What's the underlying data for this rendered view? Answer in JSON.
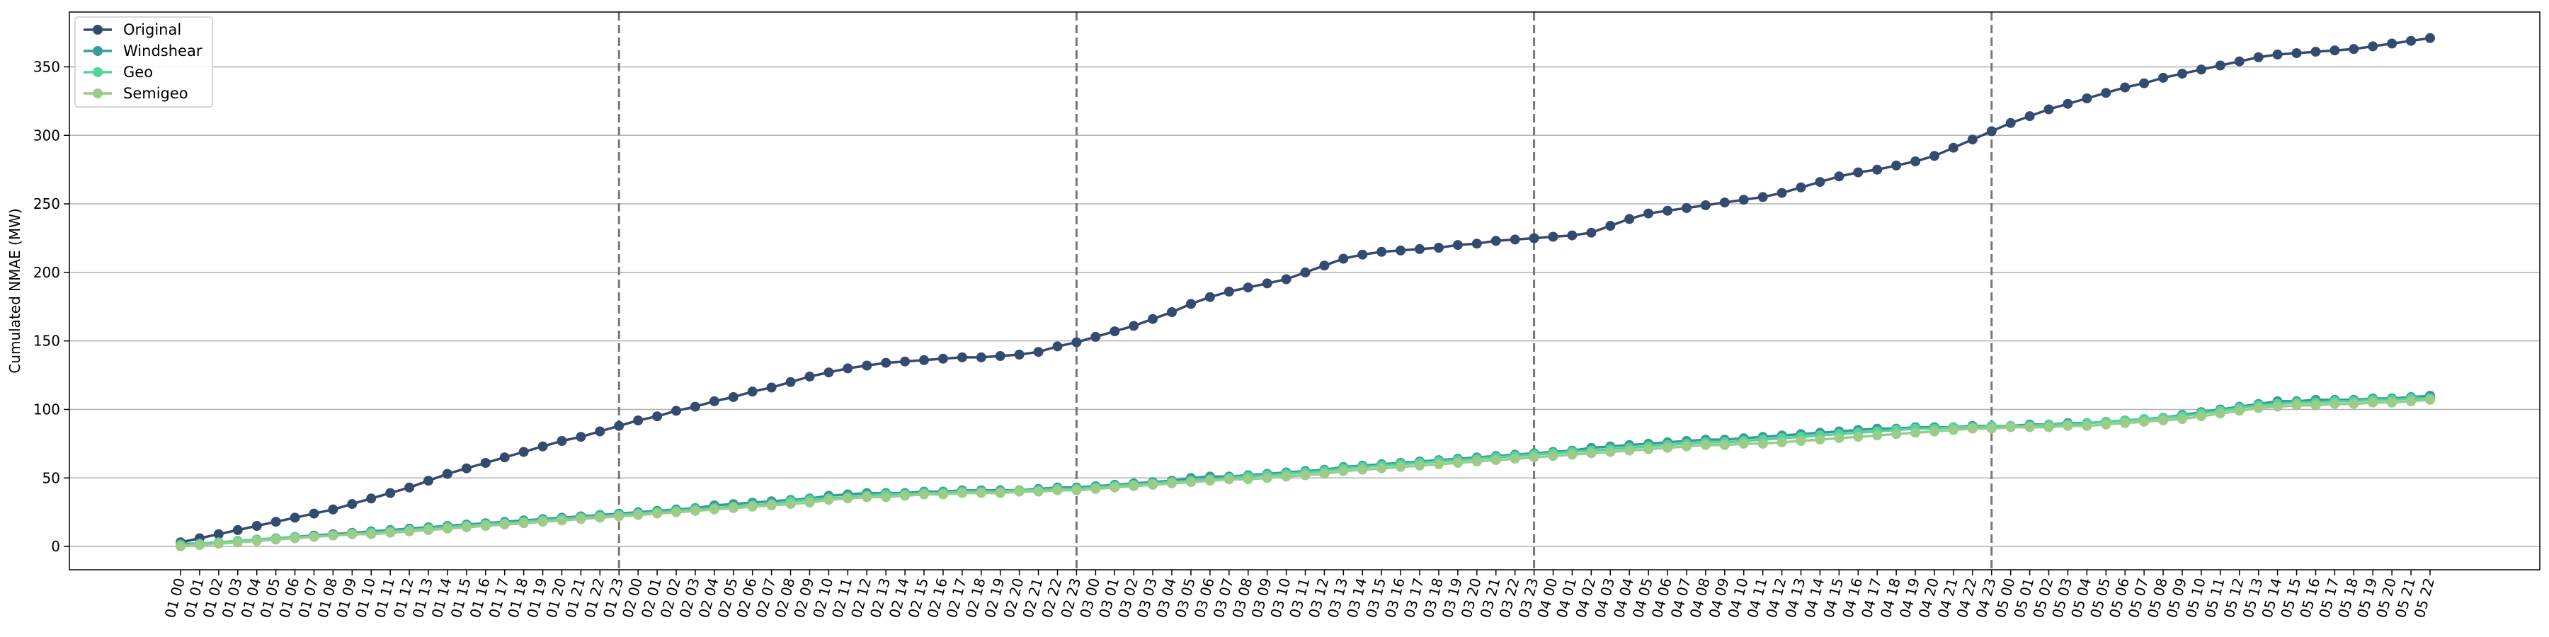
{
  "chart_data": {
    "type": "line",
    "title": "",
    "xlabel": "",
    "ylabel": "Cumulated NMAE (MW)",
    "ylim": [
      -17,
      390
    ],
    "yticks": [
      0,
      50,
      100,
      150,
      200,
      250,
      300,
      350
    ],
    "grid": "horizontal",
    "legend_position": "top-left",
    "day_separators_after": [
      "01 23",
      "02 23",
      "03 23",
      "04 23"
    ],
    "series": [
      {
        "name": "Original",
        "color": "#344a6e",
        "values": [
          3,
          6,
          9,
          12,
          15,
          18,
          21,
          24,
          27,
          31,
          35,
          39,
          43,
          48,
          53,
          57,
          61,
          65,
          69,
          73,
          77,
          80,
          84,
          88,
          92,
          95,
          99,
          102,
          106,
          109,
          113,
          116,
          120,
          124,
          127,
          130,
          132,
          134,
          135,
          136,
          137,
          138,
          138,
          139,
          140,
          142,
          146,
          149,
          153,
          157,
          161,
          166,
          171,
          177,
          182,
          186,
          189,
          192,
          195,
          200,
          205,
          210,
          213,
          215,
          216,
          217,
          218,
          220,
          221,
          223,
          224,
          225,
          226,
          227,
          229,
          234,
          239,
          243,
          245,
          247,
          249,
          251,
          253,
          255,
          258,
          262,
          266,
          270,
          273,
          275,
          278,
          281,
          285,
          291,
          297,
          303,
          309,
          314,
          319,
          323,
          327,
          331,
          335,
          338,
          342,
          345,
          348,
          351,
          354,
          357,
          359,
          360,
          361,
          362,
          363,
          365,
          367,
          369,
          371
        ]
      },
      {
        "name": "Windshear",
        "color": "#3a9a9a",
        "values": [
          2,
          2,
          3,
          4,
          5,
          6,
          7,
          8,
          9,
          10,
          11,
          12,
          13,
          14,
          15,
          16,
          17,
          18,
          19,
          20,
          21,
          22,
          23,
          24,
          25,
          26,
          27,
          28,
          30,
          31,
          32,
          33,
          34,
          35,
          37,
          38,
          39,
          39,
          39,
          40,
          40,
          41,
          41,
          41,
          41,
          42,
          43,
          43,
          44,
          45,
          46,
          47,
          48,
          50,
          51,
          51,
          52,
          53,
          54,
          55,
          56,
          58,
          59,
          60,
          61,
          62,
          63,
          64,
          65,
          66,
          67,
          68,
          69,
          70,
          72,
          73,
          74,
          75,
          76,
          77,
          78,
          78,
          79,
          80,
          81,
          82,
          83,
          84,
          85,
          86,
          86,
          87,
          87,
          87,
          88,
          88,
          88,
          89,
          89,
          90,
          90,
          91,
          92,
          93,
          94,
          96,
          98,
          100,
          102,
          104,
          106,
          106,
          107,
          107,
          107,
          108,
          108,
          109,
          110
        ]
      },
      {
        "name": "Geo",
        "color": "#52d49a",
        "values": [
          1,
          2,
          3,
          4,
          5,
          6,
          7,
          7,
          8,
          9,
          10,
          11,
          12,
          13,
          14,
          15,
          16,
          17,
          18,
          19,
          20,
          21,
          22,
          23,
          24,
          25,
          26,
          27,
          28,
          29,
          30,
          31,
          33,
          34,
          35,
          36,
          37,
          38,
          38,
          39,
          39,
          40,
          40,
          40,
          41,
          41,
          42,
          42,
          43,
          44,
          45,
          46,
          47,
          48,
          49,
          50,
          51,
          52,
          53,
          54,
          55,
          57,
          58,
          59,
          60,
          61,
          62,
          63,
          64,
          65,
          66,
          67,
          68,
          69,
          70,
          71,
          72,
          73,
          74,
          75,
          76,
          76,
          77,
          78,
          79,
          80,
          81,
          82,
          83,
          84,
          85,
          86,
          86,
          87,
          87,
          88,
          88,
          88,
          89,
          89,
          90,
          91,
          92,
          93,
          94,
          95,
          97,
          99,
          101,
          103,
          104,
          105,
          105,
          106,
          106,
          107,
          107,
          108,
          108
        ]
      },
      {
        "name": "Semigeo",
        "color": "#9ccc8a",
        "values": [
          0,
          1,
          2,
          3,
          4,
          5,
          6,
          7,
          8,
          9,
          9,
          10,
          11,
          12,
          13,
          14,
          15,
          16,
          17,
          18,
          19,
          20,
          21,
          22,
          23,
          24,
          25,
          26,
          27,
          28,
          29,
          30,
          31,
          32,
          34,
          35,
          36,
          36,
          37,
          38,
          38,
          39,
          39,
          39,
          40,
          40,
          41,
          41,
          42,
          43,
          44,
          45,
          46,
          47,
          48,
          49,
          49,
          50,
          51,
          52,
          53,
          55,
          56,
          57,
          58,
          59,
          60,
          61,
          62,
          63,
          64,
          65,
          66,
          67,
          68,
          69,
          70,
          71,
          72,
          73,
          74,
          74,
          75,
          75,
          76,
          77,
          78,
          79,
          80,
          81,
          82,
          83,
          84,
          85,
          86,
          86,
          87,
          87,
          87,
          88,
          88,
          89,
          90,
          91,
          92,
          93,
          95,
          97,
          99,
          101,
          102,
          103,
          103,
          104,
          104,
          105,
          105,
          106,
          107
        ]
      }
    ]
  }
}
